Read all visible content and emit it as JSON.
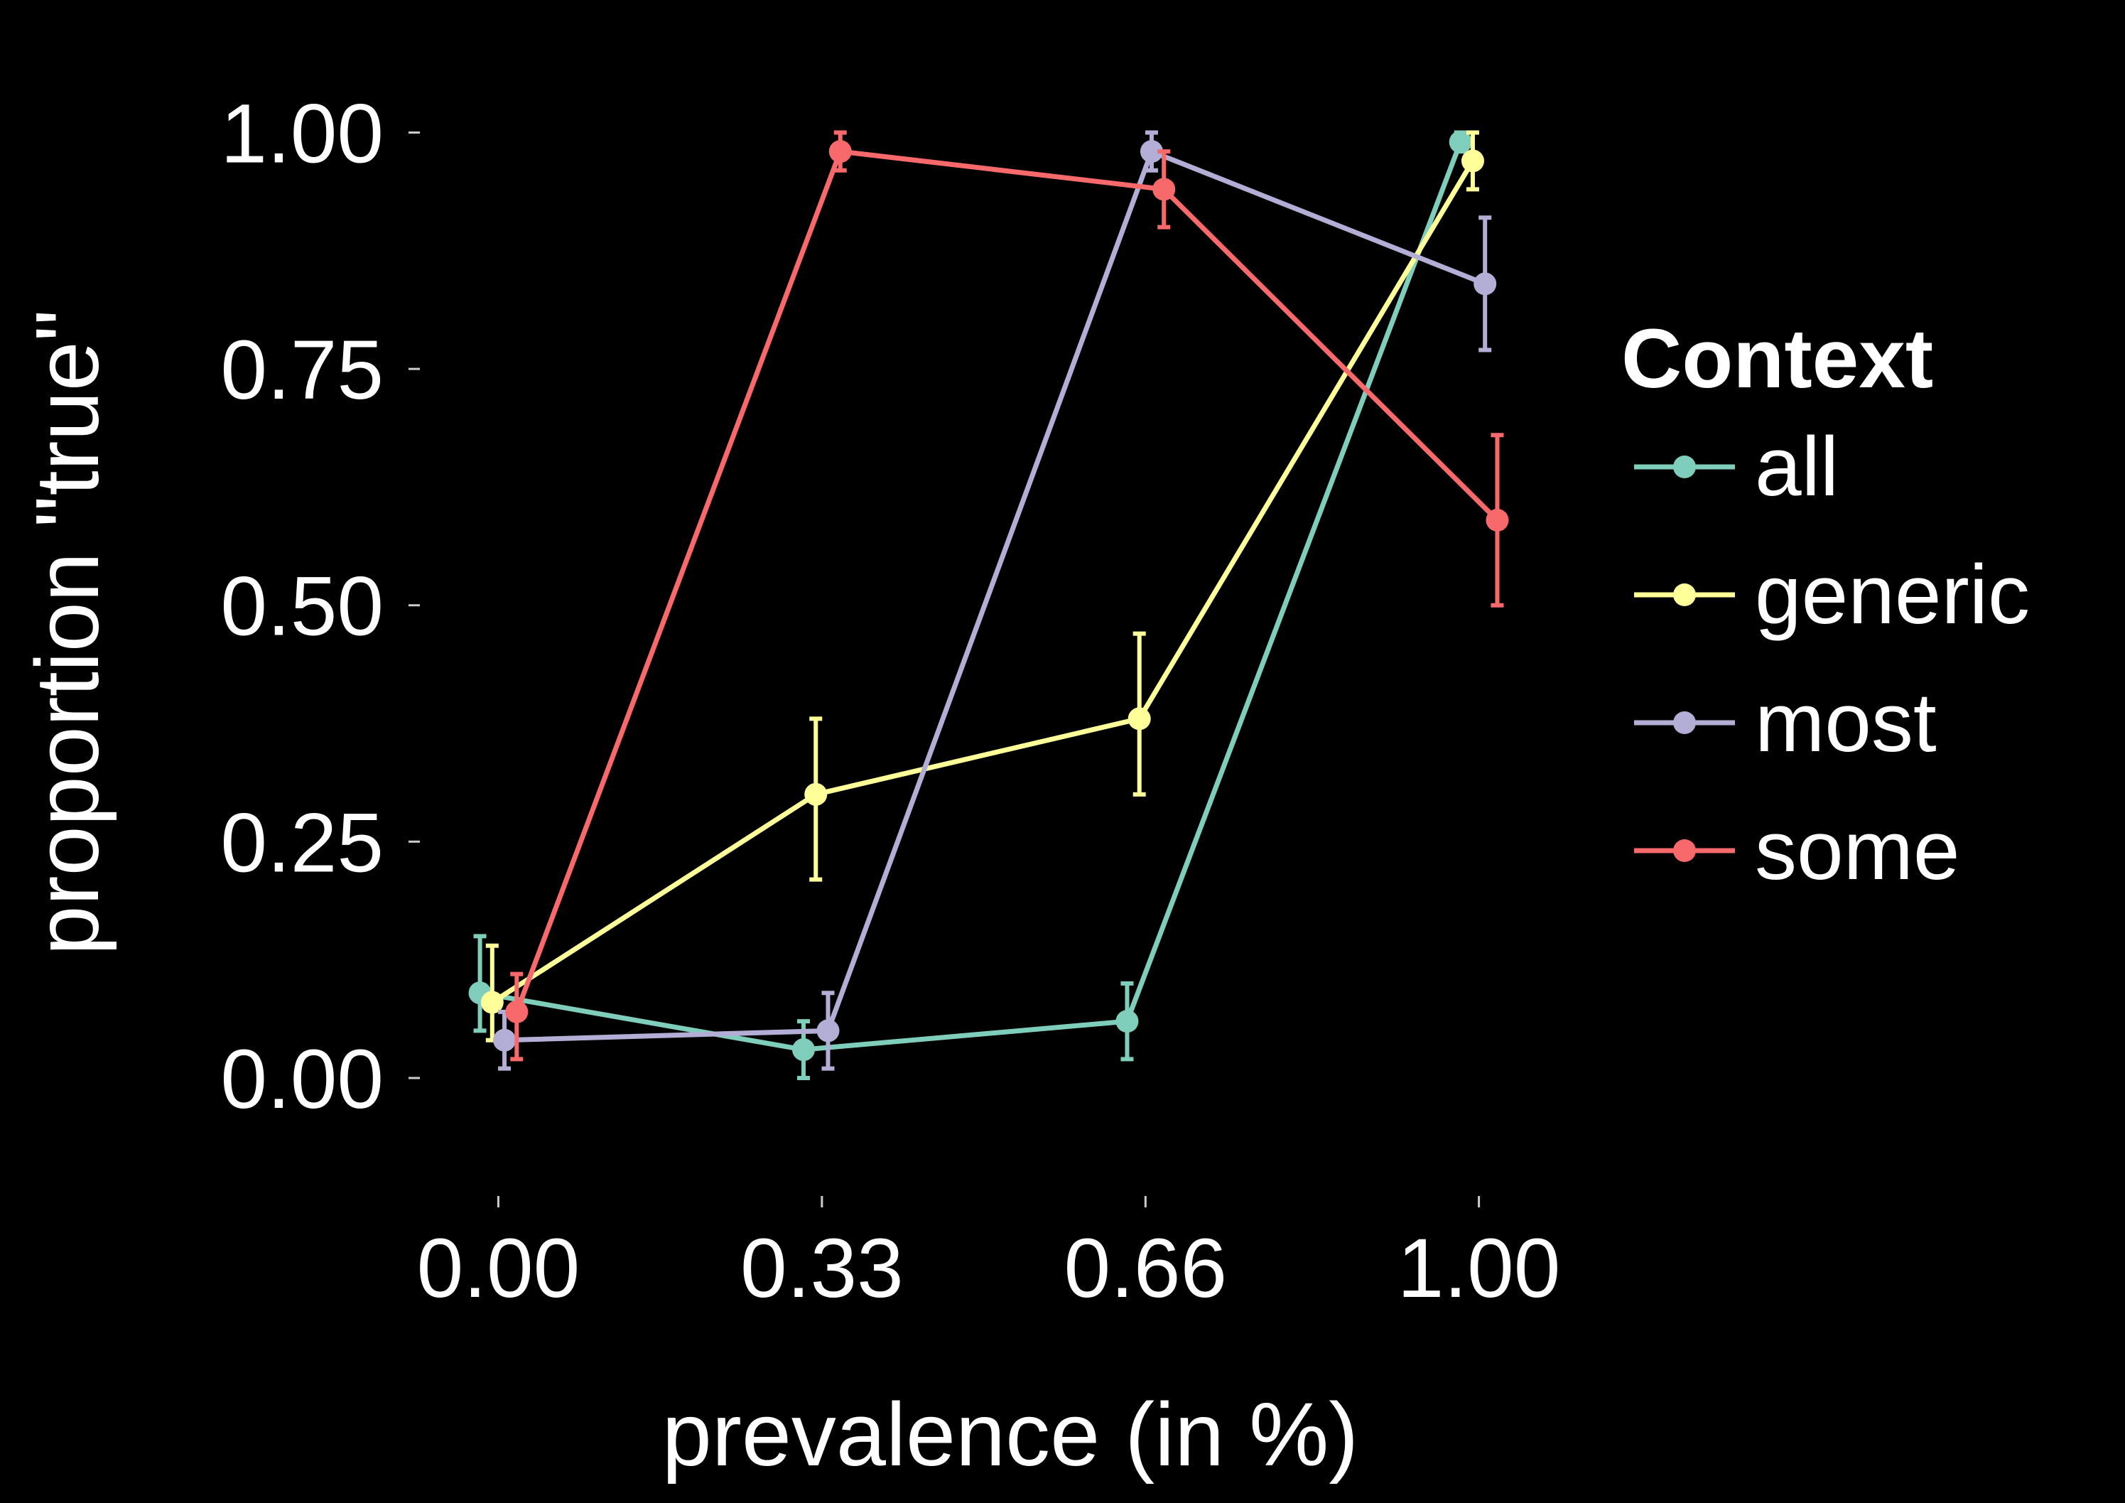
{
  "chart_data": {
    "type": "line",
    "xlabel": "prevalence (in %)",
    "ylabel": "proportion \"true\"",
    "x": [
      0.0,
      0.33,
      0.66,
      1.0
    ],
    "x_tick_labels": [
      "0.00",
      "0.33",
      "0.66",
      "1.00"
    ],
    "y_ticks": [
      0.0,
      0.25,
      0.5,
      0.75,
      1.0
    ],
    "y_tick_labels": [
      "0.00",
      "0.25",
      "0.50",
      "0.75",
      "1.00"
    ],
    "xlim": [
      -0.08,
      1.08
    ],
    "ylim": [
      -0.1,
      1.05
    ],
    "grid": false,
    "error_bars": true,
    "legend": {
      "title": "Context",
      "placement": "right"
    },
    "series": [
      {
        "name": "all",
        "color": "#7fcdbb",
        "values": [
          0.09,
          0.03,
          0.06,
          0.99
        ],
        "error_low": [
          0.05,
          0.0,
          0.02,
          0.98
        ],
        "error_high": [
          0.15,
          0.06,
          0.1,
          1.0
        ]
      },
      {
        "name": "generic",
        "color": "#ffff99",
        "values": [
          0.08,
          0.3,
          0.38,
          0.97
        ],
        "error_low": [
          0.04,
          0.21,
          0.3,
          0.94
        ],
        "error_high": [
          0.14,
          0.38,
          0.47,
          1.0
        ]
      },
      {
        "name": "most",
        "color": "#b3aed6",
        "values": [
          0.04,
          0.05,
          0.98,
          0.84
        ],
        "error_low": [
          0.01,
          0.01,
          0.96,
          0.77
        ],
        "error_high": [
          0.07,
          0.09,
          1.0,
          0.91
        ]
      },
      {
        "name": "some",
        "color": "#f8696b",
        "values": [
          0.07,
          0.98,
          0.94,
          0.59
        ],
        "error_low": [
          0.02,
          0.96,
          0.9,
          0.5
        ],
        "error_high": [
          0.11,
          1.0,
          0.98,
          0.68
        ]
      }
    ]
  }
}
